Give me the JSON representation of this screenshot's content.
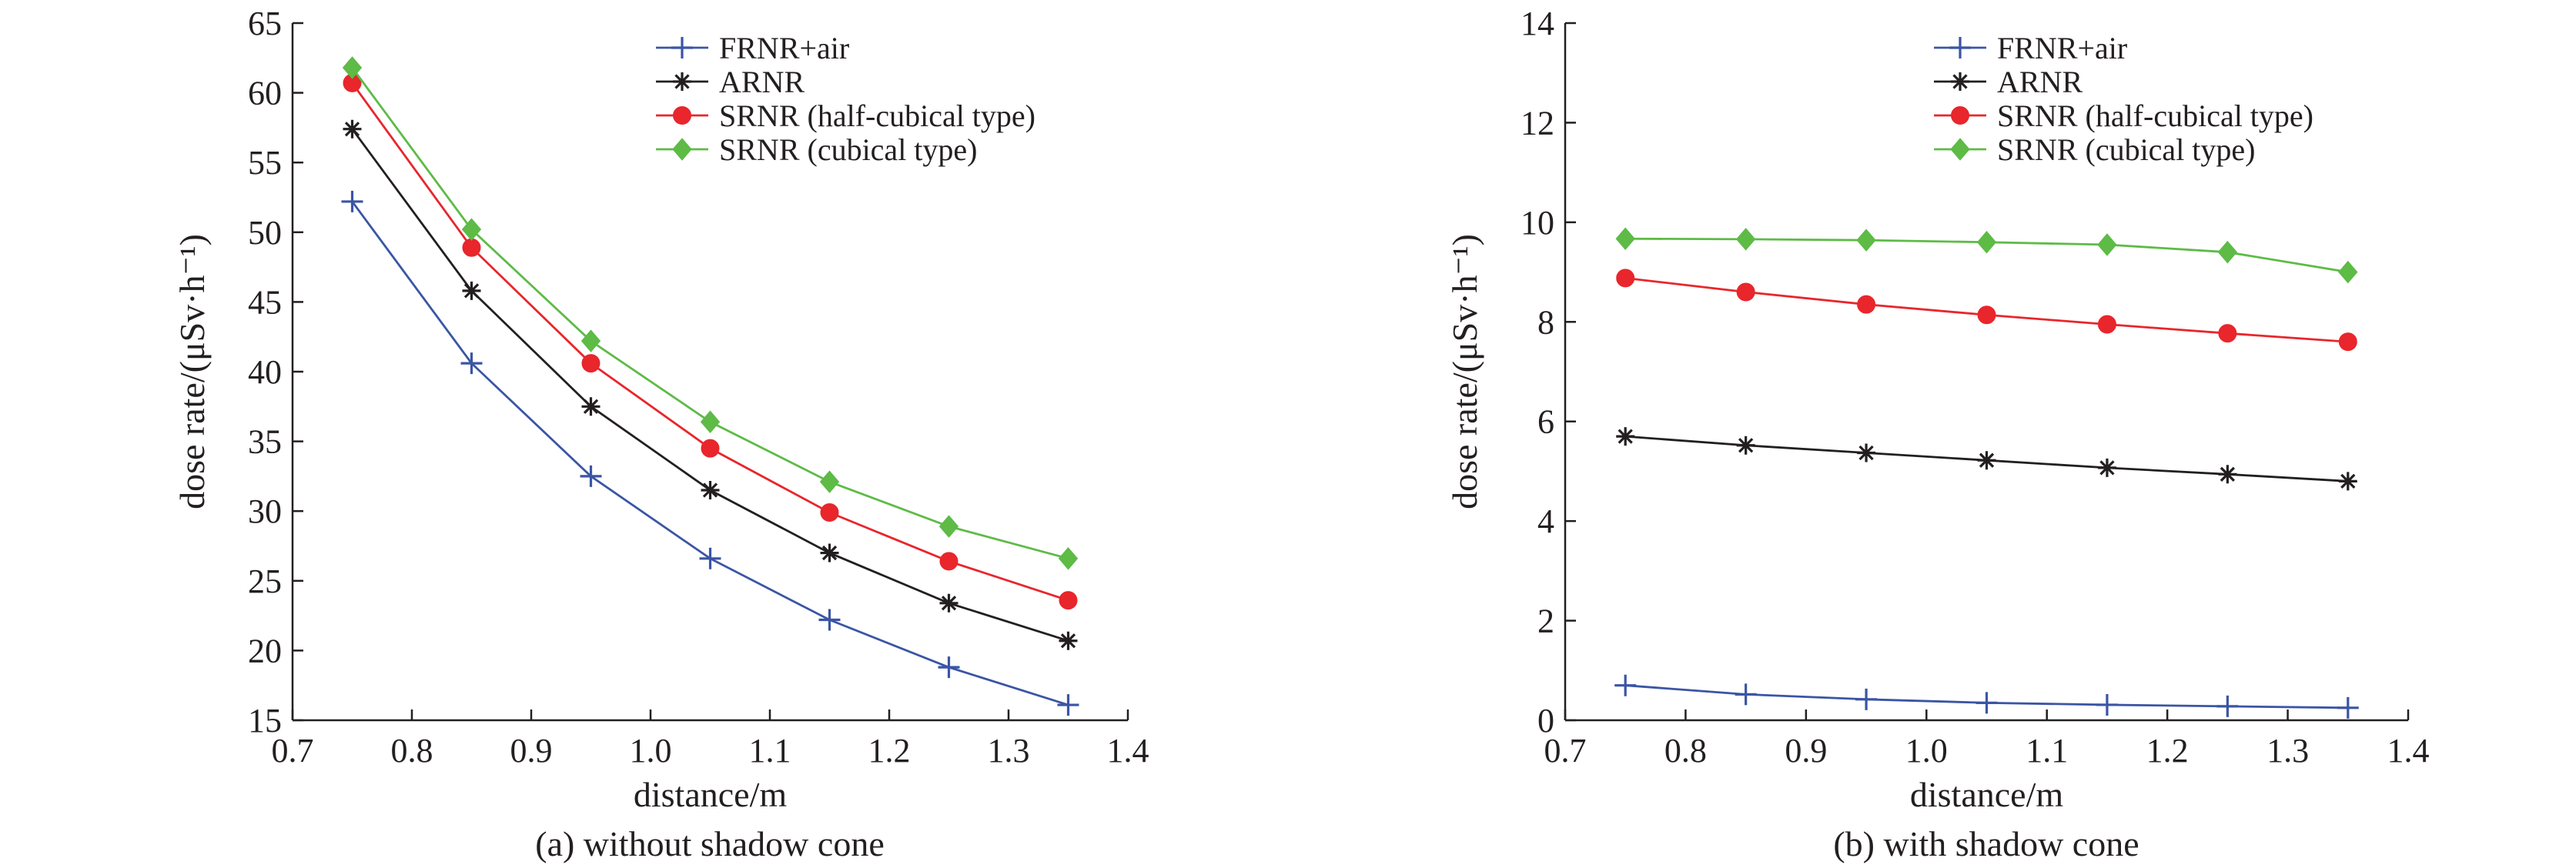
{
  "chart_data": [
    {
      "type": "line",
      "caption": "(a) without shadow cone",
      "xlabel": "distance/m",
      "ylabel": "dose rate/(μSv·h⁻¹)",
      "xlim": [
        0.7,
        1.4
      ],
      "ylim": [
        15,
        65
      ],
      "xticks": [
        0.7,
        0.8,
        0.9,
        1.0,
        1.1,
        1.2,
        1.3,
        1.4
      ],
      "xtick_labels": [
        "0.7",
        "0.8",
        "0.9",
        "1.0",
        "1.1",
        "1.2",
        "1.3",
        "1.4"
      ],
      "yticks": [
        15,
        20,
        25,
        30,
        35,
        40,
        45,
        50,
        55,
        60,
        65
      ],
      "ytick_labels": [
        "15",
        "20",
        "25",
        "30",
        "35",
        "40",
        "45",
        "50",
        "55",
        "60",
        "65"
      ],
      "grid": false,
      "legend_position": "top-right",
      "x": [
        0.75,
        0.85,
        0.95,
        1.05,
        1.15,
        1.25,
        1.35
      ],
      "series": [
        {
          "name": "FRNR+air",
          "color": "#3a55a4",
          "marker": "plus",
          "values": [
            52.2,
            40.6,
            32.5,
            26.6,
            22.2,
            18.8,
            16.1
          ]
        },
        {
          "name": "ARNR",
          "color": "#231f20",
          "marker": "asterisk",
          "values": [
            57.4,
            45.8,
            37.5,
            31.5,
            27.0,
            23.4,
            20.7
          ]
        },
        {
          "name": "SRNR (half-cubical type)",
          "color": "#e8262c",
          "marker": "circle",
          "values": [
            60.7,
            48.9,
            40.6,
            34.5,
            29.9,
            26.4,
            23.6
          ]
        },
        {
          "name": "SRNR (cubical type)",
          "color": "#5dbb46",
          "marker": "diamond",
          "values": [
            61.8,
            50.2,
            42.2,
            36.4,
            32.1,
            28.9,
            26.6
          ]
        }
      ]
    },
    {
      "type": "line",
      "caption": "(b) with shadow cone",
      "xlabel": "distance/m",
      "ylabel": "dose rate/(μSv·h⁻¹)",
      "xlim": [
        0.7,
        1.4
      ],
      "ylim": [
        0,
        14
      ],
      "xticks": [
        0.7,
        0.8,
        0.9,
        1.0,
        1.1,
        1.2,
        1.3,
        1.4
      ],
      "xtick_labels": [
        "0.7",
        "0.8",
        "0.9",
        "1.0",
        "1.1",
        "1.2",
        "1.3",
        "1.4"
      ],
      "yticks": [
        0,
        2,
        4,
        6,
        8,
        10,
        12,
        14
      ],
      "ytick_labels": [
        "0",
        "2",
        "4",
        "6",
        "8",
        "10",
        "12",
        "14"
      ],
      "grid": false,
      "legend_position": "top-right",
      "x": [
        0.75,
        0.85,
        0.95,
        1.05,
        1.15,
        1.25,
        1.35
      ],
      "series": [
        {
          "name": "FRNR+air",
          "color": "#3a55a4",
          "marker": "plus",
          "values": [
            0.7,
            0.52,
            0.42,
            0.35,
            0.31,
            0.28,
            0.25
          ]
        },
        {
          "name": "ARNR",
          "color": "#231f20",
          "marker": "asterisk",
          "values": [
            5.7,
            5.52,
            5.37,
            5.22,
            5.07,
            4.94,
            4.8
          ]
        },
        {
          "name": "SRNR (half-cubical type)",
          "color": "#e8262c",
          "marker": "circle",
          "values": [
            8.88,
            8.6,
            8.35,
            8.14,
            7.95,
            7.77,
            7.6
          ]
        },
        {
          "name": "SRNR (cubical type)",
          "color": "#5dbb46",
          "marker": "diamond",
          "values": [
            9.67,
            9.66,
            9.64,
            9.6,
            9.55,
            9.4,
            9.0
          ]
        }
      ]
    }
  ]
}
